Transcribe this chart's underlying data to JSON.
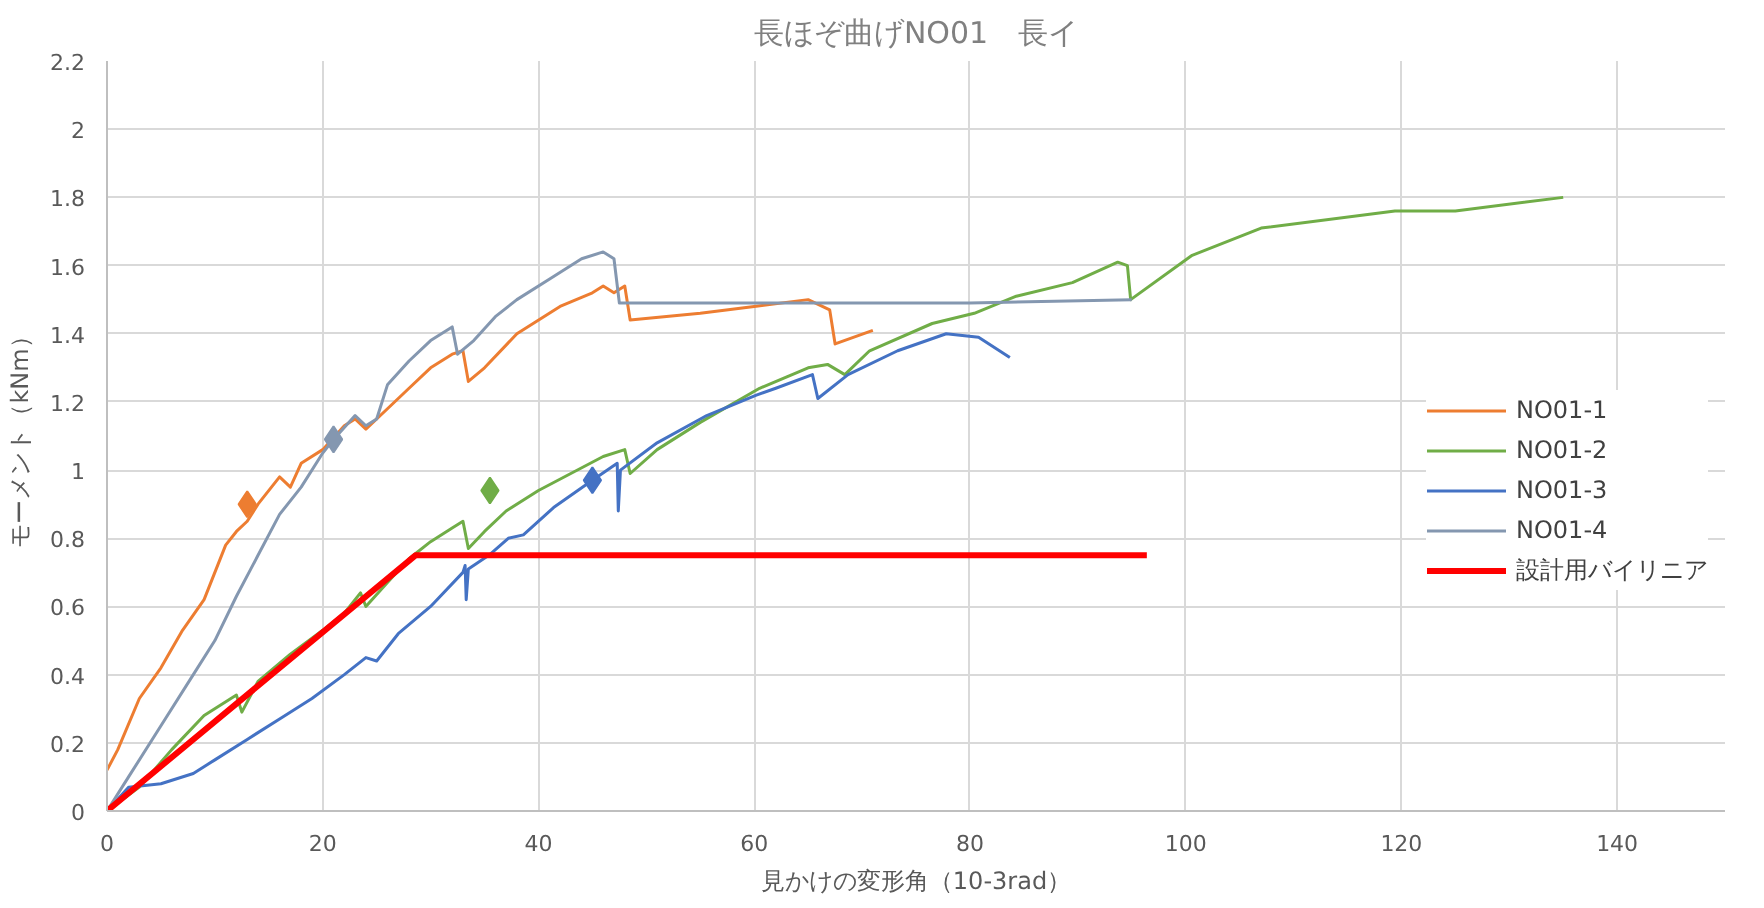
{
  "chart_data": {
    "type": "line",
    "title": "長ほぞ曲げNO01　長イ",
    "xlabel": "見かけの変形角（10-3rad）",
    "ylabel": "モーメント（kNm）",
    "xlim": [
      0,
      150
    ],
    "xticks": [
      0,
      20,
      40,
      60,
      80,
      100,
      120,
      140
    ],
    "ylim": [
      0,
      2.2
    ],
    "yticks": [
      0,
      0.2,
      0.4,
      0.6,
      0.8,
      1,
      1.2,
      1.4,
      1.6,
      1.8,
      2,
      2.2
    ],
    "grid": true,
    "legend": "right",
    "marker": "none",
    "line_style": "solid",
    "series": [
      {
        "name": "NO01-1",
        "color": "#ed7d31",
        "x": [
          0,
          1,
          3,
          5,
          7,
          9,
          11,
          12,
          13,
          14,
          16,
          17,
          18,
          20,
          22,
          23,
          24,
          26,
          28,
          30,
          32,
          33,
          33.5,
          35,
          38,
          42,
          45,
          46,
          47,
          48,
          48.5,
          55,
          60,
          65,
          67,
          67.5,
          71
        ],
        "values": [
          0.12,
          0.18,
          0.33,
          0.42,
          0.53,
          0.62,
          0.78,
          0.82,
          0.85,
          0.9,
          0.98,
          0.95,
          1.02,
          1.06,
          1.13,
          1.15,
          1.12,
          1.18,
          1.24,
          1.3,
          1.34,
          1.35,
          1.26,
          1.3,
          1.4,
          1.48,
          1.52,
          1.54,
          1.52,
          1.54,
          1.44,
          1.46,
          1.48,
          1.5,
          1.47,
          1.37,
          1.41
        ]
      },
      {
        "name": "NO01-2",
        "color": "#70ad47",
        "x": [
          0,
          3,
          6,
          9,
          12,
          12.5,
          14,
          17,
          20,
          22,
          23.5,
          24,
          26,
          28,
          30,
          32,
          33,
          33.5,
          35,
          37,
          40,
          43,
          46,
          48,
          48.5,
          51,
          55,
          60.5,
          65,
          66.8,
          68.4,
          70.7,
          76.5,
          80.4,
          84.3,
          89.5,
          93.7,
          94.6,
          94.9,
          100.6,
          107,
          119.4,
          125,
          135
        ],
        "values": [
          0,
          0.07,
          0.18,
          0.28,
          0.34,
          0.29,
          0.38,
          0.46,
          0.53,
          0.58,
          0.64,
          0.6,
          0.67,
          0.74,
          0.79,
          0.83,
          0.85,
          0.77,
          0.82,
          0.88,
          0.94,
          0.99,
          1.04,
          1.06,
          0.99,
          1.06,
          1.14,
          1.24,
          1.3,
          1.31,
          1.28,
          1.35,
          1.43,
          1.46,
          1.51,
          1.55,
          1.61,
          1.6,
          1.5,
          1.63,
          1.71,
          1.76,
          1.76,
          1.8
        ]
      },
      {
        "name": "NO01-3",
        "color": "#4472c4",
        "x": [
          0,
          2,
          5,
          8,
          10,
          13,
          16,
          19,
          22,
          24,
          25,
          27,
          30,
          33,
          33.2,
          33.3,
          33.5,
          35.4,
          37.2,
          38.6,
          41.4,
          45,
          47.3,
          47.4,
          47.6,
          51,
          55.6,
          60.2,
          62,
          65.4,
          65.9,
          68.7,
          73.3,
          77.8,
          80.8,
          83.7
        ],
        "values": [
          0,
          0.07,
          0.08,
          0.11,
          0.15,
          0.21,
          0.27,
          0.33,
          0.4,
          0.45,
          0.44,
          0.52,
          0.6,
          0.7,
          0.72,
          0.62,
          0.71,
          0.75,
          0.8,
          0.81,
          0.89,
          0.97,
          1.02,
          0.88,
          1.0,
          1.08,
          1.16,
          1.22,
          1.24,
          1.28,
          1.21,
          1.28,
          1.35,
          1.4,
          1.39,
          1.33
        ]
      },
      {
        "name": "NO01-4",
        "color": "#8497b0",
        "x": [
          0,
          2,
          5,
          8,
          10,
          12,
          14,
          16,
          18,
          20,
          21,
          23,
          24,
          25,
          26,
          28,
          30,
          32,
          32.5,
          34,
          36,
          38,
          41,
          44,
          46,
          47,
          47.5,
          60,
          80,
          95
        ],
        "values": [
          0,
          0.1,
          0.25,
          0.4,
          0.5,
          0.63,
          0.75,
          0.87,
          0.95,
          1.05,
          1.09,
          1.16,
          1.13,
          1.15,
          1.25,
          1.32,
          1.38,
          1.42,
          1.34,
          1.38,
          1.45,
          1.5,
          1.56,
          1.62,
          1.64,
          1.62,
          1.49,
          1.49,
          1.49,
          1.5
        ]
      },
      {
        "name": "設計用バイリニア",
        "color": "#ff0000",
        "x": [
          0,
          28.6,
          96.4
        ],
        "values": [
          0,
          0.75,
          0.75
        ]
      },
      {
        "type": "scatter",
        "marker": "diamond",
        "color": "#ed7d31",
        "x": [
          13
        ],
        "values": [
          0.9
        ]
      },
      {
        "type": "scatter",
        "marker": "diamond",
        "color": "#8497b0",
        "x": [
          21
        ],
        "values": [
          1.09
        ]
      },
      {
        "type": "scatter",
        "marker": "diamond",
        "color": "#70ad47",
        "x": [
          35.5
        ],
        "values": [
          0.94
        ]
      },
      {
        "type": "scatter",
        "marker": "diamond",
        "color": "#4472c4",
        "x": [
          45
        ],
        "values": [
          0.97
        ]
      }
    ]
  }
}
